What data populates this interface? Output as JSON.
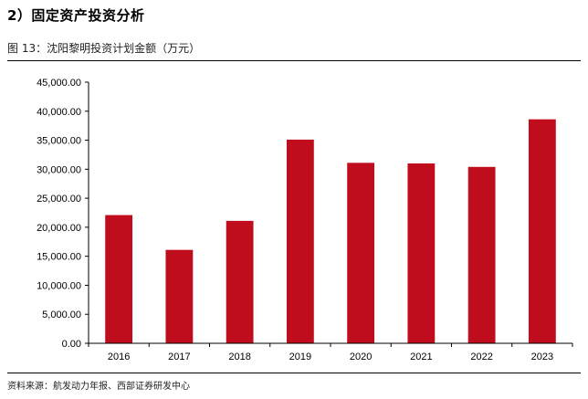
{
  "section_heading": "2）固定资产投资分析",
  "figure_caption": "图 13：沈阳黎明投资计划金额（万元）",
  "source_note": "资料来源：航发动力年报、西部证券研发中心",
  "colors": {
    "bar": "#c00d1e",
    "axis": "#000000"
  },
  "chart_data": {
    "type": "bar",
    "title": "",
    "xlabel": "",
    "ylabel": "",
    "ylim": [
      0,
      45000
    ],
    "yticks": [
      0,
      5000,
      10000,
      15000,
      20000,
      25000,
      30000,
      35000,
      40000,
      45000
    ],
    "ytick_labels": [
      "0.00",
      "5,000.00",
      "10,000.00",
      "15,000.00",
      "20,000.00",
      "25,000.00",
      "30,000.00",
      "35,000.00",
      "40,000.00",
      "45,000.00"
    ],
    "categories": [
      "2016",
      "2017",
      "2018",
      "2019",
      "2020",
      "2021",
      "2022",
      "2023"
    ],
    "values": [
      22100,
      16100,
      21100,
      35100,
      31100,
      31000,
      30400,
      38600
    ],
    "grid": false,
    "legend": "none"
  }
}
